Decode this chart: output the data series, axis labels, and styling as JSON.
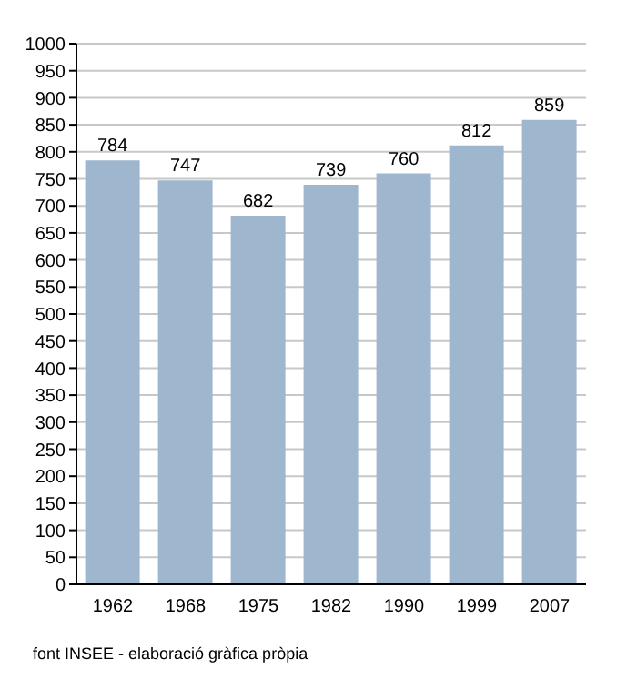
{
  "chart_data": {
    "type": "bar",
    "categories": [
      "1962",
      "1968",
      "1975",
      "1982",
      "1990",
      "1999",
      "2007"
    ],
    "values": [
      784,
      747,
      682,
      739,
      760,
      812,
      859
    ],
    "color": "#9fb6cf",
    "ylim": [
      0,
      1000
    ],
    "yticks": [
      0,
      50,
      100,
      150,
      200,
      250,
      300,
      350,
      400,
      450,
      500,
      550,
      600,
      650,
      700,
      750,
      800,
      850,
      900,
      950,
      1000
    ],
    "grid": "y",
    "data_labels": true,
    "annotations": [
      "font INSEE - elaboració gràfica pròpia"
    ]
  }
}
